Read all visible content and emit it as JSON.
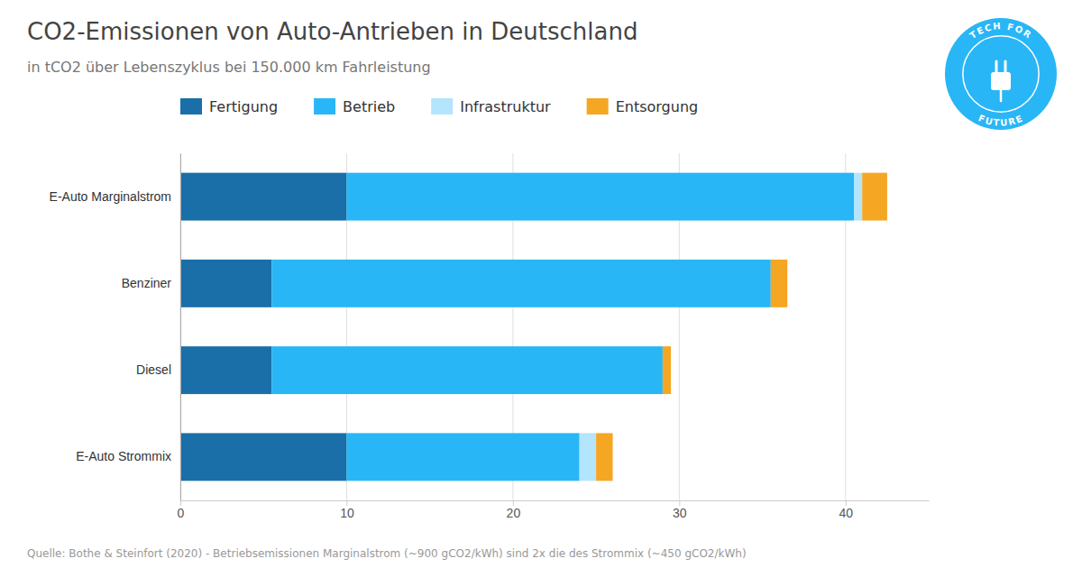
{
  "chart_data": {
    "type": "bar",
    "orientation": "horizontal",
    "stacked": true,
    "title": "CO2-Emissionen von Auto-Antrieben in Deutschland",
    "subtitle": "in tCO2 über Lebenszyklus bei 150.000 km Fahrleistung",
    "footnote": "Quelle: Bothe & Steinfort (2020) - Betriebsemissionen Marginalstrom (~900 gCO2/kWh) sind 2x die des Strommix (~450 gCO2/kWh)",
    "annotations": [
      "TECH FOR",
      "FUTURE"
    ],
    "categories": [
      "E-Auto Marginalstrom",
      "Benziner",
      "Diesel",
      "E-Auto Strommix"
    ],
    "series": [
      {
        "name": "Fertigung",
        "color": "#1a6fa8",
        "values": [
          10.0,
          5.5,
          5.5,
          10.0
        ]
      },
      {
        "name": "Betrieb",
        "color": "#29b6f6",
        "values": [
          30.5,
          30.0,
          23.5,
          14.0
        ]
      },
      {
        "name": "Infrastruktur",
        "color": "#b3e5fc",
        "values": [
          0.5,
          0.0,
          0.0,
          1.0
        ]
      },
      {
        "name": "Entsorgung",
        "color": "#f5a623",
        "values": [
          1.5,
          1.0,
          0.5,
          1.0
        ]
      }
    ],
    "xlim": [
      0,
      45
    ],
    "xticks": [
      0,
      10,
      20,
      30,
      40
    ],
    "grid": true,
    "legend": "top"
  }
}
